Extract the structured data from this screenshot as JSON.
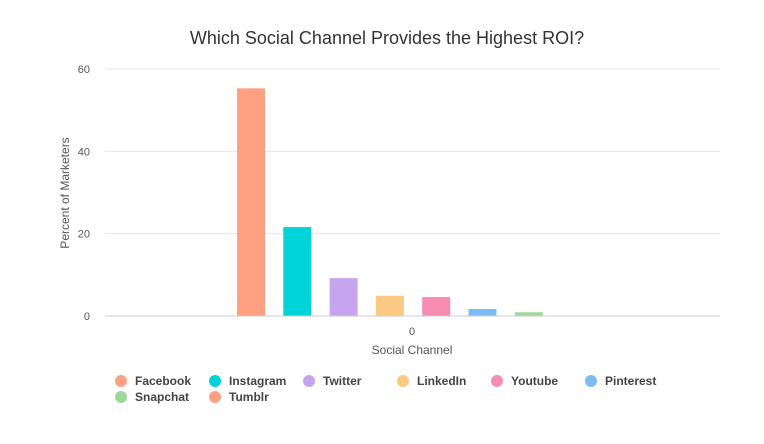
{
  "chart_data": {
    "type": "bar",
    "title": "Which Social Channel Provides the Highest ROI?",
    "xlabel": "Social Channel",
    "ylabel": "Percent of Marketers",
    "categories": [
      "0"
    ],
    "ylim": [
      0,
      60
    ],
    "yticks": [
      0,
      20,
      40,
      60
    ],
    "grid": true,
    "legend_position": "bottom",
    "series": [
      {
        "name": "Facebook",
        "values": [
          55.3
        ],
        "color": "#ffa083"
      },
      {
        "name": "Instagram",
        "values": [
          21.6
        ],
        "color": "#00d4d8"
      },
      {
        "name": "Twitter",
        "values": [
          9.2
        ],
        "color": "#c6a5ee"
      },
      {
        "name": "LinkedIn",
        "values": [
          4.9
        ],
        "color": "#fbc983"
      },
      {
        "name": "Youtube",
        "values": [
          4.6
        ],
        "color": "#f78cb0"
      },
      {
        "name": "Pinterest",
        "values": [
          1.7
        ],
        "color": "#7bbcf7"
      },
      {
        "name": "Snapchat",
        "values": [
          0.9
        ],
        "color": "#9ed99a"
      },
      {
        "name": "Tumblr",
        "values": [
          0
        ],
        "color": "#ffa083"
      }
    ]
  }
}
